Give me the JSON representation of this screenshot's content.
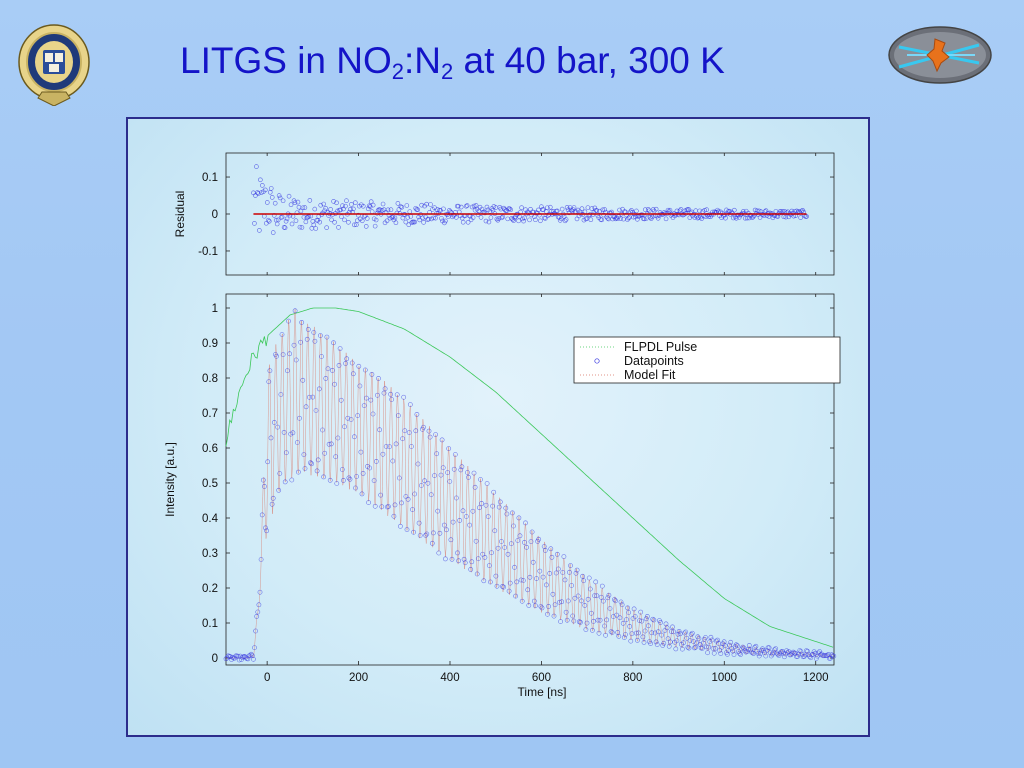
{
  "slide": {
    "title_main": "LITGS in NO",
    "title_sub1": "2",
    "title_colon": ":N",
    "title_sub2": "2",
    "title_rest": " at 40 bar, 300 K"
  },
  "colors": {
    "title": "#1414c8",
    "datapoints": "#3434e0",
    "model_fit": "#d87060",
    "flpdl_pulse": "#3cc85a",
    "residual_line": "#cc0000",
    "frame_border": "#2c2c8c"
  },
  "logos": {
    "left": "university-of-oxford-crest",
    "right": "atom-physics-logo"
  },
  "chart_data": [
    {
      "type": "scatter",
      "panel": "residual",
      "ylabel": "Residual",
      "xlim": [
        -90,
        1240
      ],
      "ylim": [
        -0.165,
        0.165
      ],
      "yticks": [
        -0.1,
        0,
        0.1
      ],
      "ytick_labels": [
        "-0.1",
        "0",
        "0.1"
      ],
      "xtick_positions": [
        0,
        200,
        400,
        600,
        800,
        1000,
        1200
      ],
      "zero_line": {
        "x": [
          -30,
          1180
        ],
        "y": 0
      },
      "residual_envelope": {
        "time_ns": [
          -30,
          0,
          50,
          100,
          200,
          300,
          400,
          600,
          800,
          1000,
          1180
        ],
        "amplitude": [
          0.12,
          0.07,
          0.05,
          0.04,
          0.035,
          0.03,
          0.025,
          0.02,
          0.015,
          0.012,
          0.01
        ]
      },
      "point_count": 560
    },
    {
      "type": "scatter",
      "panel": "intensity",
      "xlabel": "Time [ns]",
      "ylabel": "Intensity [a.u.]",
      "xlim": [
        -90,
        1240
      ],
      "ylim": [
        -0.02,
        1.04
      ],
      "xticks": [
        0,
        200,
        400,
        600,
        800,
        1000,
        1200
      ],
      "xtick_labels": [
        "0",
        "200",
        "400",
        "600",
        "800",
        "1000",
        "1200"
      ],
      "yticks": [
        0,
        0.1,
        0.2,
        0.3,
        0.4,
        0.5,
        0.6,
        0.7,
        0.8,
        0.9,
        1
      ],
      "ytick_labels": [
        "0",
        "0.1",
        "0.2",
        "0.3",
        "0.4",
        "0.5",
        "0.6",
        "0.7",
        "0.8",
        "0.9",
        "1"
      ],
      "legend": {
        "position": "upper-right",
        "entries": [
          "FLPDL Pulse",
          "Datapoints",
          "Model Fit"
        ]
      },
      "series": [
        {
          "name": "FLPDL Pulse",
          "style": "line",
          "time_ns": [
            -90,
            -70,
            -50,
            -30,
            0,
            50,
            100,
            150,
            200,
            300,
            400,
            500,
            600,
            700,
            800,
            900,
            1000,
            1100,
            1240
          ],
          "values": [
            0.62,
            0.72,
            0.8,
            0.86,
            0.92,
            0.98,
            1.0,
            1.0,
            0.99,
            0.94,
            0.86,
            0.76,
            0.64,
            0.52,
            0.4,
            0.28,
            0.17,
            0.09,
            0.03
          ]
        },
        {
          "name": "Datapoints",
          "style": "markers",
          "oscillation_period_ns": 14,
          "envelope_time_ns": [
            -90,
            -40,
            -30,
            -20,
            -10,
            0,
            10,
            20,
            40,
            60,
            80,
            100,
            150,
            200,
            250,
            300,
            400,
            500,
            600,
            700,
            800,
            900,
            1000,
            1100,
            1240
          ],
          "envelope_upper": [
            0.0,
            0.0,
            0.02,
            0.15,
            0.45,
            0.82,
            0.86,
            0.9,
            0.95,
            1.0,
            0.96,
            0.95,
            0.9,
            0.84,
            0.8,
            0.74,
            0.6,
            0.47,
            0.34,
            0.23,
            0.14,
            0.08,
            0.045,
            0.025,
            0.01
          ],
          "envelope_lower": [
            0.0,
            0.0,
            0.0,
            0.1,
            0.3,
            0.35,
            0.4,
            0.46,
            0.5,
            0.52,
            0.53,
            0.52,
            0.5,
            0.47,
            0.42,
            0.37,
            0.28,
            0.2,
            0.13,
            0.08,
            0.05,
            0.03,
            0.015,
            0.007,
            0.002
          ]
        },
        {
          "name": "Model Fit",
          "style": "line",
          "note_shape": "oscillating fit following datapoints"
        }
      ]
    }
  ],
  "axes_text": {
    "residual_ylabel": "Residual",
    "intensity_ylabel": "Intensity [a.u.]",
    "xlabel": "Time [ns]"
  }
}
